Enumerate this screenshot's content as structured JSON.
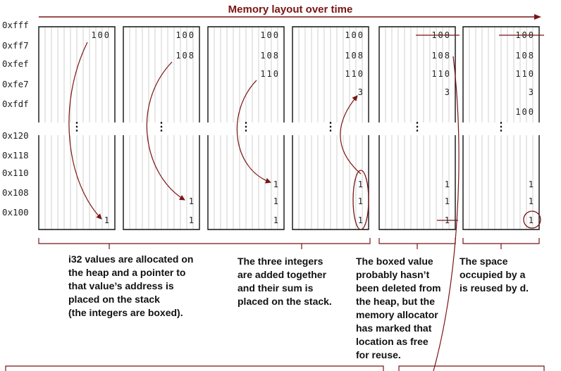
{
  "title": "Memory layout over time",
  "stack_addresses": [
    "0xfff",
    "0xff7",
    "0xfef",
    "0xfe7",
    "0xfdf"
  ],
  "heap_addresses": [
    "0x120",
    "0x118",
    "0x110",
    "0x108",
    "0x100"
  ],
  "ellipsis": "⋮",
  "frames": [
    {
      "stack": [
        "100",
        "",
        "",
        "",
        ""
      ],
      "heap": [
        "",
        "",
        "",
        "",
        "1"
      ]
    },
    {
      "stack": [
        "100",
        "108",
        "",
        "",
        ""
      ],
      "heap": [
        "",
        "",
        "",
        "1",
        "1"
      ]
    },
    {
      "stack": [
        "100",
        "108",
        "110",
        "",
        ""
      ],
      "heap": [
        "",
        "",
        "1",
        "1",
        "1"
      ]
    },
    {
      "stack": [
        "100",
        "108",
        "110",
        "3",
        ""
      ],
      "heap": [
        "",
        "",
        "1",
        "1",
        "1"
      ]
    },
    {
      "stack": [
        "100",
        "108",
        "110",
        "3",
        ""
      ],
      "heap": [
        "",
        "",
        "1",
        "1",
        "1"
      ]
    },
    {
      "stack": [
        "100",
        "108",
        "110",
        "3",
        "100"
      ],
      "heap": [
        "",
        "",
        "1",
        "1",
        "1"
      ]
    }
  ],
  "captions": {
    "boxed": [
      "i32 values are allocated on",
      "the heap and a pointer to",
      "that value’s address is",
      "placed on the stack",
      "(the integers are boxed)."
    ],
    "sum": [
      "The three integers",
      "are added together",
      "and their sum is",
      "placed on the stack."
    ],
    "freed": [
      "The boxed value",
      "probably hasn’t",
      "been deleted from",
      "the heap, but the",
      "memory allocator",
      "has marked that",
      "location as free",
      "for reuse."
    ],
    "reused": [
      "The space",
      "occupied by a",
      "is reused by d."
    ]
  },
  "colors": {
    "accent": "#7a1414",
    "grid": "#c4c4c4",
    "frame": "#111111"
  }
}
